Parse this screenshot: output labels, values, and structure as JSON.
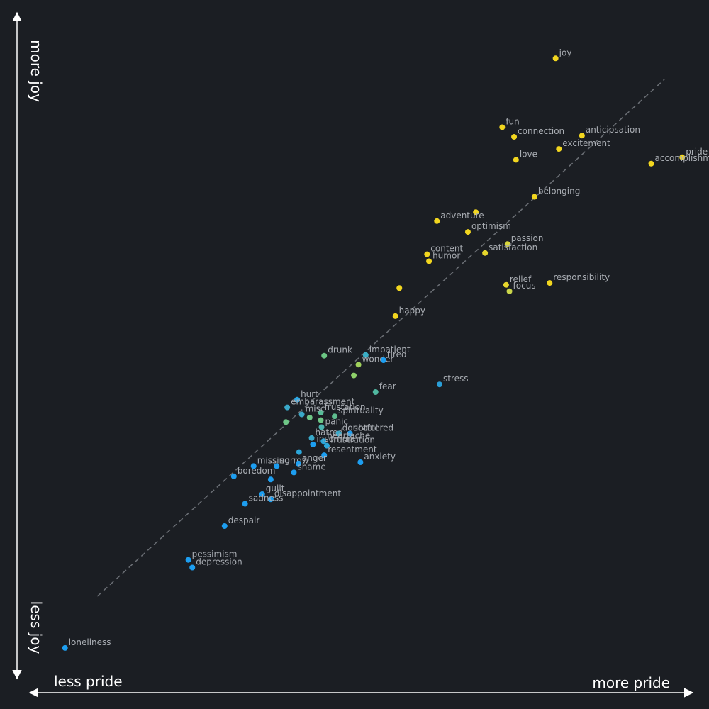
{
  "chart_data": {
    "type": "scatter",
    "title": "",
    "xlabel_low": "less pride",
    "xlabel_high": "more pride",
    "ylabel_low": "less joy",
    "ylabel_high": "more joy",
    "xlim": [
      0,
      100
    ],
    "ylim": [
      0,
      100
    ],
    "grid": false,
    "trendline": {
      "from": [
        11,
        11
      ],
      "to": [
        97,
        92
      ],
      "style": "dashed"
    },
    "points": [
      {
        "label": "joy",
        "x": 80.5,
        "y": 95.3,
        "color": "#f2d61f"
      },
      {
        "label": "fun",
        "x": 72.4,
        "y": 84.5,
        "color": "#f2d61f"
      },
      {
        "label": "connection",
        "x": 74.2,
        "y": 83.0,
        "color": "#f2d61f"
      },
      {
        "label": "anticipsation",
        "x": 84.5,
        "y": 83.2,
        "color": "#f2d61f"
      },
      {
        "label": "excitement",
        "x": 81.0,
        "y": 81.1,
        "color": "#f2d61f"
      },
      {
        "label": "love",
        "x": 74.5,
        "y": 79.4,
        "color": "#f2d61f"
      },
      {
        "label": "pride",
        "x": 99.7,
        "y": 79.8,
        "color": "#f2d61f"
      },
      {
        "label": "accomplishment",
        "x": 95.0,
        "y": 78.8,
        "color": "#f2d61f"
      },
      {
        "label": "belonging",
        "x": 77.3,
        "y": 73.6,
        "color": "#f2d61f"
      },
      {
        "label": "",
        "x": 68.4,
        "y": 71.2,
        "color": "#f2d61f"
      },
      {
        "label": "adventure",
        "x": 62.5,
        "y": 69.8,
        "color": "#f2d61f"
      },
      {
        "label": "optimism",
        "x": 67.2,
        "y": 68.1,
        "color": "#f2d61f"
      },
      {
        "label": "passion",
        "x": 73.2,
        "y": 66.2,
        "color": "#d8d63a"
      },
      {
        "label": "content",
        "x": 61.0,
        "y": 64.6,
        "color": "#f2d61f"
      },
      {
        "label": "satisfaction",
        "x": 69.8,
        "y": 64.8,
        "color": "#e6d62c"
      },
      {
        "label": "humor",
        "x": 61.3,
        "y": 63.5,
        "color": "#f2d61f"
      },
      {
        "label": "relief",
        "x": 73.0,
        "y": 59.8,
        "color": "#e6d62c"
      },
      {
        "label": "focus",
        "x": 73.5,
        "y": 58.8,
        "color": "#cad64a"
      },
      {
        "label": "responsibility",
        "x": 79.6,
        "y": 60.1,
        "color": "#f2d61f"
      },
      {
        "label": "",
        "x": 56.8,
        "y": 59.3,
        "color": "#f2d61f"
      },
      {
        "label": "happy",
        "x": 56.2,
        "y": 54.9,
        "color": "#f2d61f"
      },
      {
        "label": "drunk",
        "x": 45.4,
        "y": 48.7,
        "color": "#6cc684"
      },
      {
        "label": "impatient",
        "x": 51.7,
        "y": 48.8,
        "color": "#3aadc4"
      },
      {
        "label": "wonder",
        "x": 50.6,
        "y": 47.3,
        "color": "#a0d25c"
      },
      {
        "label": "tired",
        "x": 54.4,
        "y": 48.0,
        "color": "#1d9ef0"
      },
      {
        "label": "",
        "x": 49.9,
        "y": 45.6,
        "color": "#8ed06a"
      },
      {
        "label": "stress",
        "x": 62.9,
        "y": 44.2,
        "color": "#2a9fd8"
      },
      {
        "label": "fear",
        "x": 53.2,
        "y": 43.0,
        "color": "#50b8a0"
      },
      {
        "label": "hurt",
        "x": 41.3,
        "y": 41.8,
        "color": "#2ba9e6"
      },
      {
        "label": "embarassment",
        "x": 39.8,
        "y": 40.6,
        "color": "#3aa9c9"
      },
      {
        "label": "frustation",
        "x": 44.9,
        "y": 39.8,
        "color": "#58bd98"
      },
      {
        "label": "misc",
        "x": 42.0,
        "y": 39.5,
        "color": "#3ba9c8"
      },
      {
        "label": "spirituality",
        "x": 47.0,
        "y": 39.2,
        "color": "#5ebd8e"
      },
      {
        "label": "",
        "x": 43.2,
        "y": 39.0,
        "color": "#6ec686"
      },
      {
        "label": "",
        "x": 44.9,
        "y": 38.6,
        "color": "#6ec686"
      },
      {
        "label": "",
        "x": 39.6,
        "y": 38.3,
        "color": "#6ec686"
      },
      {
        "label": "panic",
        "x": 45.0,
        "y": 37.5,
        "color": "#4cb4b0"
      },
      {
        "label": "hatred",
        "x": 43.5,
        "y": 35.8,
        "color": "#3aa9c9"
      },
      {
        "label": "scattered",
        "x": 49.3,
        "y": 36.5,
        "color": "#1d9ef0"
      },
      {
        "label": "doubtful",
        "x": 47.6,
        "y": 36.5,
        "color": "#3aa9c9"
      },
      {
        "label": "heartache",
        "x": 45.3,
        "y": 35.3,
        "color": "#2ba6da"
      },
      {
        "label": "insomnia",
        "x": 43.7,
        "y": 34.8,
        "color": "#1d9ef0"
      },
      {
        "label": "frustration",
        "x": 45.8,
        "y": 34.6,
        "color": "#2ba6da"
      },
      {
        "label": "",
        "x": 41.6,
        "y": 33.6,
        "color": "#2ba6da"
      },
      {
        "label": "resentment",
        "x": 45.4,
        "y": 33.1,
        "color": "#1d9ef0"
      },
      {
        "label": "anxiety",
        "x": 50.9,
        "y": 32.0,
        "color": "#1d9ef0"
      },
      {
        "label": "missing",
        "x": 34.7,
        "y": 31.4,
        "color": "#1d9ef0"
      },
      {
        "label": "sorrow",
        "x": 38.2,
        "y": 31.4,
        "color": "#1d9ef0"
      },
      {
        "label": "anger",
        "x": 41.5,
        "y": 31.8,
        "color": "#1d9ef0"
      },
      {
        "label": "boredom",
        "x": 31.7,
        "y": 29.8,
        "color": "#1d9ef0"
      },
      {
        "label": "shame",
        "x": 40.8,
        "y": 30.4,
        "color": "#1d9ef0"
      },
      {
        "label": "",
        "x": 37.3,
        "y": 29.3,
        "color": "#1d9ef0"
      },
      {
        "label": "guilt",
        "x": 36.0,
        "y": 27.0,
        "color": "#1d9ef0"
      },
      {
        "label": "disappointment",
        "x": 37.3,
        "y": 26.2,
        "color": "#1d9ef0"
      },
      {
        "label": "sadness",
        "x": 33.4,
        "y": 25.5,
        "color": "#1d9ef0"
      },
      {
        "label": "despair",
        "x": 30.3,
        "y": 22.0,
        "color": "#1d9ef0"
      },
      {
        "label": "pessimism",
        "x": 24.8,
        "y": 16.7,
        "color": "#1d9ef0"
      },
      {
        "label": "depression",
        "x": 25.4,
        "y": 15.5,
        "color": "#1d9ef0"
      },
      {
        "label": "loneliness",
        "x": 6.1,
        "y": 2.9,
        "color": "#1d9ef0"
      }
    ]
  }
}
